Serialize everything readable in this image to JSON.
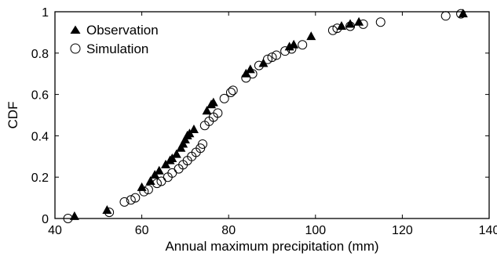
{
  "chart_data": {
    "type": "scatter",
    "xlabel": "Annual maximum precipitation (mm)",
    "ylabel": "CDF",
    "xlim": [
      40,
      140
    ],
    "ylim": [
      0,
      1
    ],
    "x_ticks": [
      40,
      60,
      80,
      100,
      120,
      140
    ],
    "y_ticks": [
      0,
      0.2,
      0.4,
      0.6,
      0.8,
      1
    ],
    "x_tick_labels": [
      "40",
      "60",
      "80",
      "100",
      "120",
      "140"
    ],
    "y_tick_labels": [
      "0",
      "0.2",
      "0.4",
      "0.6",
      "0.8",
      "1"
    ],
    "grid": false,
    "legend_position": "top-left",
    "series": [
      {
        "name": "Observation",
        "marker": "filled-triangle",
        "color": "#000000",
        "points": [
          [
            44.5,
            0.01
          ],
          [
            52.0,
            0.04
          ],
          [
            60.0,
            0.15
          ],
          [
            62.0,
            0.18
          ],
          [
            63.0,
            0.21
          ],
          [
            64.0,
            0.23
          ],
          [
            65.5,
            0.26
          ],
          [
            66.5,
            0.28
          ],
          [
            67.0,
            0.29
          ],
          [
            68.0,
            0.31
          ],
          [
            69.0,
            0.34
          ],
          [
            69.5,
            0.36
          ],
          [
            70.0,
            0.38
          ],
          [
            70.5,
            0.4
          ],
          [
            71.0,
            0.41
          ],
          [
            72.0,
            0.43
          ],
          [
            75.0,
            0.52
          ],
          [
            76.0,
            0.55
          ],
          [
            76.5,
            0.56
          ],
          [
            84.0,
            0.7
          ],
          [
            85.0,
            0.72
          ],
          [
            88.0,
            0.75
          ],
          [
            94.0,
            0.83
          ],
          [
            95.0,
            0.84
          ],
          [
            99.0,
            0.88
          ],
          [
            106.0,
            0.93
          ],
          [
            108.0,
            0.94
          ],
          [
            110.0,
            0.95
          ],
          [
            134.0,
            0.99
          ]
        ]
      },
      {
        "name": "Simulation",
        "marker": "open-circle",
        "color": "#000000",
        "points": [
          [
            43.0,
            0.0
          ],
          [
            52.5,
            0.03
          ],
          [
            56.0,
            0.08
          ],
          [
            57.5,
            0.09
          ],
          [
            58.5,
            0.1
          ],
          [
            60.5,
            0.13
          ],
          [
            61.5,
            0.14
          ],
          [
            63.5,
            0.17
          ],
          [
            64.5,
            0.18
          ],
          [
            66.0,
            0.2
          ],
          [
            67.0,
            0.22
          ],
          [
            68.5,
            0.24
          ],
          [
            69.5,
            0.26
          ],
          [
            70.5,
            0.28
          ],
          [
            71.5,
            0.3
          ],
          [
            72.5,
            0.32
          ],
          [
            73.5,
            0.34
          ],
          [
            74.0,
            0.36
          ],
          [
            74.5,
            0.45
          ],
          [
            75.5,
            0.47
          ],
          [
            76.5,
            0.49
          ],
          [
            77.5,
            0.51
          ],
          [
            79.0,
            0.58
          ],
          [
            80.5,
            0.61
          ],
          [
            81.0,
            0.62
          ],
          [
            84.0,
            0.68
          ],
          [
            85.5,
            0.7
          ],
          [
            87.0,
            0.74
          ],
          [
            89.0,
            0.77
          ],
          [
            90.0,
            0.78
          ],
          [
            91.0,
            0.79
          ],
          [
            93.0,
            0.81
          ],
          [
            94.5,
            0.82
          ],
          [
            97.0,
            0.84
          ],
          [
            104.0,
            0.91
          ],
          [
            105.0,
            0.92
          ],
          [
            108.0,
            0.93
          ],
          [
            111.0,
            0.94
          ],
          [
            115.0,
            0.95
          ],
          [
            130.0,
            0.98
          ],
          [
            133.5,
            0.99
          ]
        ]
      }
    ]
  }
}
